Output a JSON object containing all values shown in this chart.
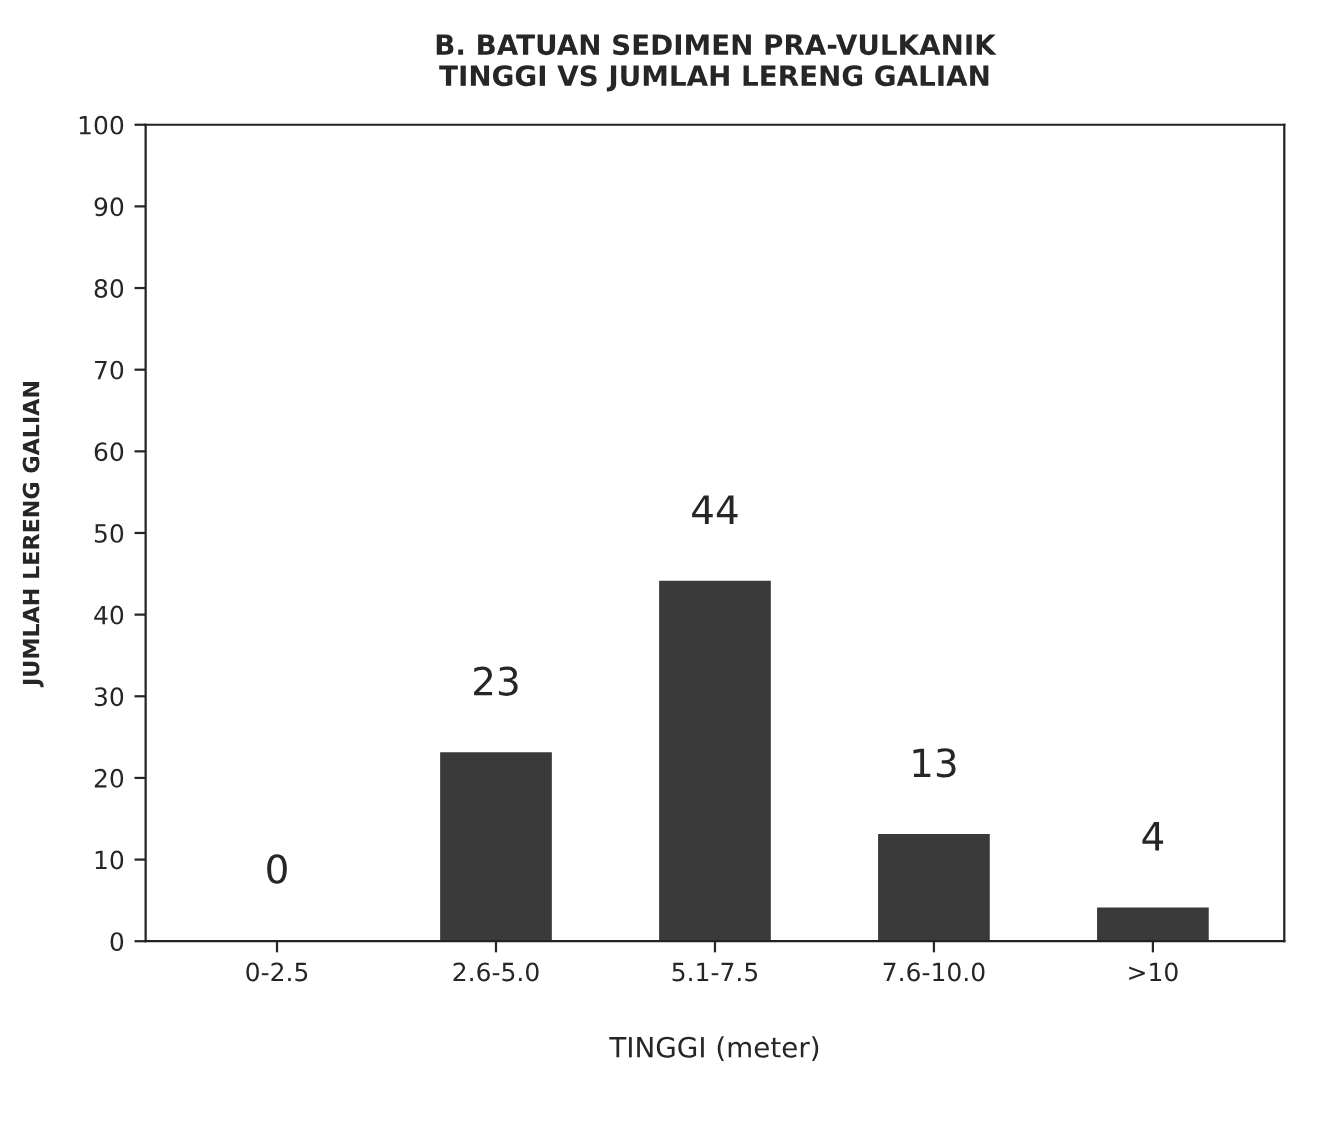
{
  "chart_data": {
    "type": "bar",
    "title": "B. BATUAN SEDIMEN PRA-VULKANIK\nTINGGI VS JUMLAH LERENG GALIAN",
    "xlabel": "TINGGI (meter)",
    "ylabel": "JUMLAH LERENG GALIAN",
    "categories": [
      "0-2.5",
      "2.6-5.0",
      "5.1-7.5",
      "7.6-10.0",
      ">10"
    ],
    "values": [
      0,
      23,
      44,
      13,
      4
    ],
    "color": "#3a3a3a",
    "ylim": [
      0,
      100
    ],
    "yticks": [
      0,
      10,
      20,
      30,
      40,
      50,
      60,
      70,
      80,
      90,
      100
    ],
    "grid": false,
    "data_labels": true
  }
}
